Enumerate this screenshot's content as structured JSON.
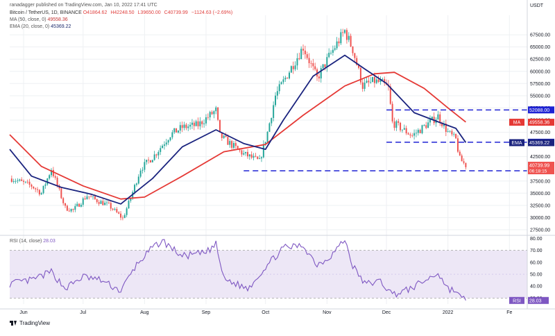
{
  "header": {
    "publisher": "ranadagger published on TradingView.com, Jan 10, 2022 17:41 UTC",
    "symbol": "Bitcoin / TetherUS, 1D, BINANCE",
    "ohlc": [
      "O41864.62",
      "H42248.50",
      "L39650.00",
      "C40739.99",
      "−1124.63 (−2.69%)"
    ],
    "ma_label": "MA (50, close, 0)",
    "ma_value": "49558.36",
    "ema_label": "EMA (20, close, 0)",
    "ema_value": "45369.22",
    "rsi_label": "RSI (14, close)",
    "rsi_value": "28.03"
  },
  "currency": "USDT",
  "brand": "TradingView",
  "colors": {
    "up": "#26a69a",
    "down": "#ef5350",
    "ma": "#e53935",
    "ema": "#1a237e",
    "rsi": "#7e57c2",
    "level": "#1e22d4",
    "rsi_band": "#ede7f6",
    "grid": "#eef0f3"
  },
  "chart_data": [
    {
      "type": "candlestick",
      "x_range": [
        "2021-05-25",
        "2022-02-10"
      ],
      "xtick_labels": [
        "Jun",
        "Jul",
        "Aug",
        "Sep",
        "Oct",
        "Nov",
        "Dec",
        "2022",
        "Fe"
      ],
      "ylim": [
        26500,
        71500
      ],
      "ytick_labels": [
        "67500.00",
        "65000.00",
        "62500.00",
        "60000.00",
        "57500.00",
        "55000.00",
        "52500.00",
        "50000.00",
        "47500.00",
        "42500.00",
        "37500.00",
        "35000.00",
        "32500.00",
        "30000.00",
        "27500.00"
      ],
      "anchors": [
        [
          "2021-05-26",
          38000
        ],
        [
          "2021-06-05",
          36500
        ],
        [
          "2021-06-10",
          35000
        ],
        [
          "2021-06-15",
          40000
        ],
        [
          "2021-06-22",
          32000
        ],
        [
          "2021-06-26",
          31500
        ],
        [
          "2021-07-03",
          34500
        ],
        [
          "2021-07-08",
          33500
        ],
        [
          "2021-07-14",
          32500
        ],
        [
          "2021-07-21",
          29800
        ],
        [
          "2021-07-25",
          34000
        ],
        [
          "2021-07-30",
          40000
        ],
        [
          "2021-08-06",
          42800
        ],
        [
          "2021-08-14",
          47000
        ],
        [
          "2021-08-20",
          48500
        ],
        [
          "2021-08-28",
          49000
        ],
        [
          "2021-09-06",
          52000
        ],
        [
          "2021-09-08",
          46800
        ],
        [
          "2021-09-20",
          43000
        ],
        [
          "2021-09-22",
          42700
        ],
        [
          "2021-09-28",
          41500
        ],
        [
          "2021-10-02",
          47500
        ],
        [
          "2021-10-06",
          55000
        ],
        [
          "2021-10-15",
          61500
        ],
        [
          "2021-10-20",
          65000
        ],
        [
          "2021-10-27",
          58500
        ],
        [
          "2021-11-02",
          63000
        ],
        [
          "2021-11-08",
          67000
        ],
        [
          "2021-11-10",
          68300
        ],
        [
          "2021-11-14",
          64500
        ],
        [
          "2021-11-19",
          57000
        ],
        [
          "2021-11-25",
          58000
        ],
        [
          "2021-11-29",
          57500
        ],
        [
          "2021-12-02",
          56500
        ],
        [
          "2021-12-04",
          49500
        ],
        [
          "2021-12-14",
          46800
        ],
        [
          "2021-12-21",
          49000
        ],
        [
          "2021-12-27",
          50800
        ],
        [
          "2022-01-01",
          47500
        ],
        [
          "2022-01-05",
          46000
        ],
        [
          "2022-01-07",
          42000
        ],
        [
          "2022-01-10",
          40740
        ]
      ],
      "ma": {
        "name": "MA",
        "value": 49558.36,
        "points": [
          [
            "2021-05-25",
            47000
          ],
          [
            "2021-06-10",
            40500
          ],
          [
            "2021-07-01",
            36500
          ],
          [
            "2021-07-20",
            33800
          ],
          [
            "2021-08-01",
            34200
          ],
          [
            "2021-08-20",
            38500
          ],
          [
            "2021-09-10",
            43500
          ],
          [
            "2021-10-01",
            45000
          ],
          [
            "2021-10-20",
            51000
          ],
          [
            "2021-11-10",
            57000
          ],
          [
            "2021-11-25",
            59500
          ],
          [
            "2021-12-05",
            59800
          ],
          [
            "2021-12-20",
            56500
          ],
          [
            "2022-01-01",
            52500
          ],
          [
            "2022-01-10",
            49600
          ]
        ]
      },
      "ema": {
        "name": "EMA",
        "value": 45369.22,
        "points": [
          [
            "2021-05-25",
            44000
          ],
          [
            "2021-06-05",
            38500
          ],
          [
            "2021-06-20",
            36200
          ],
          [
            "2021-07-05",
            34800
          ],
          [
            "2021-07-20",
            32800
          ],
          [
            "2021-08-05",
            38000
          ],
          [
            "2021-08-20",
            44500
          ],
          [
            "2021-09-06",
            48000
          ],
          [
            "2021-09-20",
            45200
          ],
          [
            "2021-10-01",
            44000
          ],
          [
            "2021-10-10",
            50000
          ],
          [
            "2021-10-25",
            59000
          ],
          [
            "2021-11-10",
            63300
          ],
          [
            "2021-11-20",
            60500
          ],
          [
            "2021-12-01",
            57500
          ],
          [
            "2021-12-15",
            51500
          ],
          [
            "2021-12-28",
            49500
          ],
          [
            "2022-01-05",
            48300
          ],
          [
            "2022-01-10",
            45400
          ]
        ]
      },
      "levels": [
        {
          "value": 52088.0,
          "label": "52088.00",
          "from": "2021-12-01"
        },
        {
          "value": 45456.0,
          "label": "45456.00",
          "from": "2021-12-01"
        },
        {
          "value": 39600.0,
          "label": "39600.00",
          "from": "2021-09-20"
        }
      ],
      "tags": [
        {
          "text": "MA",
          "value": "49558.36",
          "color": "#e53935"
        },
        {
          "text": "EMA",
          "value": "45369.22",
          "color": "#1a237e"
        },
        {
          "price": "40739.99",
          "countdown": "06:18:15",
          "color": "#ef5350"
        }
      ]
    },
    {
      "type": "line",
      "name": "RSI",
      "ylim": [
        25,
        82
      ],
      "ytick_labels": [
        "80.00",
        "70.00",
        "60.00",
        "50.00",
        "40.00",
        "30.00"
      ],
      "band": [
        30,
        70
      ],
      "last": 28.03,
      "anchors": [
        [
          "2021-05-25",
          42
        ],
        [
          "2021-06-05",
          45
        ],
        [
          "2021-06-15",
          52
        ],
        [
          "2021-06-22",
          38
        ],
        [
          "2021-07-01",
          48
        ],
        [
          "2021-07-10",
          45
        ],
        [
          "2021-07-20",
          36
        ],
        [
          "2021-07-28",
          58
        ],
        [
          "2021-08-05",
          72
        ],
        [
          "2021-08-10",
          78
        ],
        [
          "2021-08-20",
          65
        ],
        [
          "2021-09-01",
          68
        ],
        [
          "2021-09-06",
          75
        ],
        [
          "2021-09-10",
          46
        ],
        [
          "2021-09-22",
          38
        ],
        [
          "2021-10-02",
          58
        ],
        [
          "2021-10-10",
          72
        ],
        [
          "2021-10-20",
          74
        ],
        [
          "2021-10-27",
          58
        ],
        [
          "2021-11-02",
          64
        ],
        [
          "2021-11-10",
          79
        ],
        [
          "2021-11-14",
          57
        ],
        [
          "2021-11-20",
          42
        ],
        [
          "2021-11-28",
          44
        ],
        [
          "2021-12-04",
          33
        ],
        [
          "2021-12-12",
          37
        ],
        [
          "2021-12-22",
          46
        ],
        [
          "2021-12-27",
          51
        ],
        [
          "2022-01-01",
          38
        ],
        [
          "2022-01-05",
          36
        ],
        [
          "2022-01-07",
          31
        ],
        [
          "2022-01-10",
          28
        ]
      ]
    }
  ]
}
